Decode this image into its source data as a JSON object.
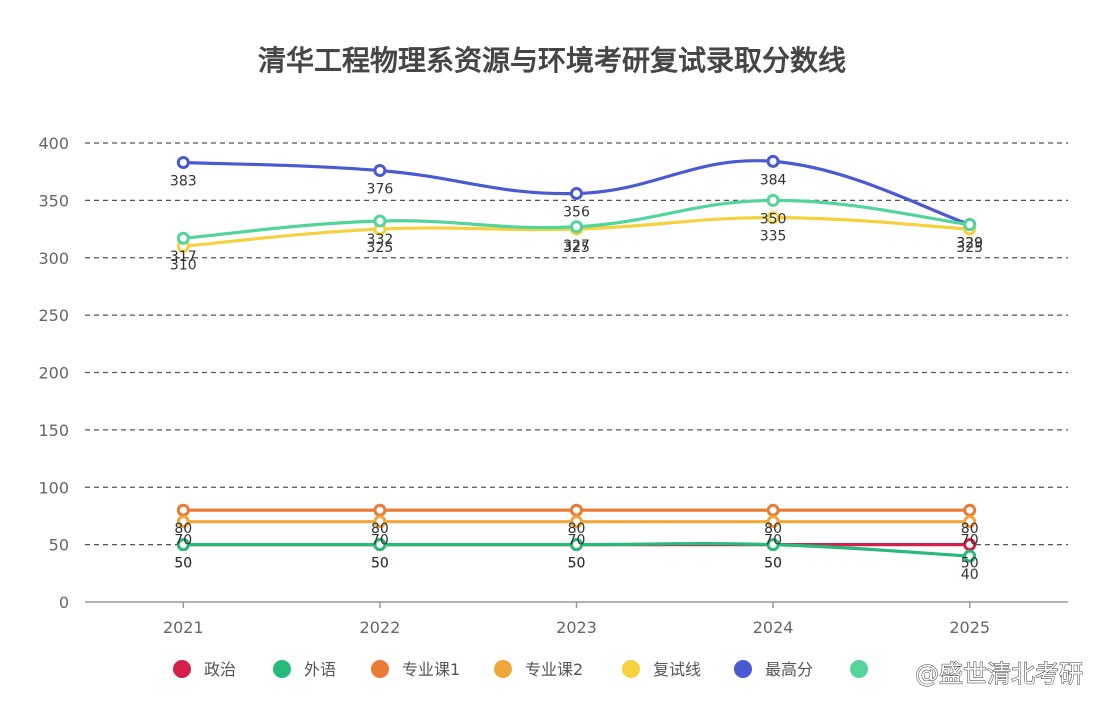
{
  "chart_data": {
    "type": "line",
    "title": "清华工程物理系资源与环境考研复试录取分数线",
    "categories": [
      "2021",
      "2022",
      "2023",
      "2024",
      "2025"
    ],
    "ylim": [
      0,
      400
    ],
    "yticks": [
      "0",
      "50",
      "100",
      "150",
      "200",
      "250",
      "300",
      "350",
      "400"
    ],
    "grid": "horizontal-dashed",
    "legend_position": "bottom",
    "series": [
      {
        "name": "政治",
        "color": "#d6204b",
        "values": [
          50,
          50,
          50,
          50,
          50
        ]
      },
      {
        "name": "外语",
        "color": "#27ba7b",
        "values": [
          50,
          50,
          50,
          50,
          40
        ]
      },
      {
        "name": "专业课1",
        "color": "#ea7a34",
        "values": [
          80,
          80,
          80,
          80,
          80
        ]
      },
      {
        "name": "专业课2",
        "color": "#f0a73a",
        "values": [
          70,
          70,
          70,
          70,
          70
        ]
      },
      {
        "name": "复试线",
        "color": "#f5d13e",
        "values": [
          310,
          325,
          325,
          335,
          325
        ]
      },
      {
        "name": "最高分",
        "color": "#4b59d3",
        "values": [
          383,
          376,
          356,
          384,
          329
        ]
      },
      {
        "name": "",
        "color": "#52d49b",
        "values": [
          317,
          332,
          327,
          350,
          329
        ]
      }
    ]
  },
  "watermark": "@盛世清北考研"
}
